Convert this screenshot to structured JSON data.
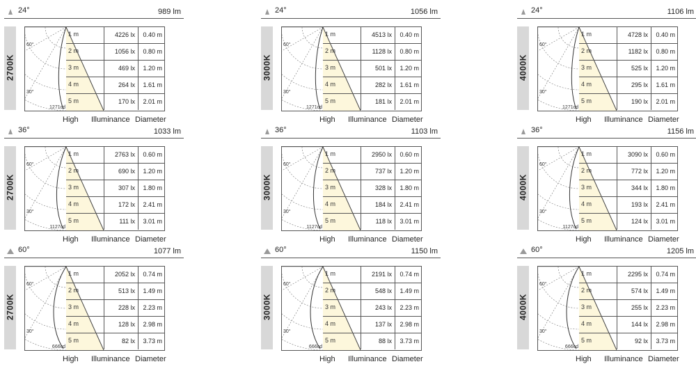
{
  "footer_labels": {
    "high": "High",
    "illuminance": "Illuminance",
    "diameter": "Diameter"
  },
  "polar": {
    "angle60": "60°",
    "angle30": "30°"
  },
  "distances": [
    "1 m",
    "2 m",
    "3 m",
    "4 m",
    "5 m"
  ],
  "panels": [
    {
      "angle": "24°",
      "lumens": "989 lm",
      "cct": "2700K",
      "peak": "1271cd",
      "lux": [
        "4226 lx",
        "1056 lx",
        "469 lx",
        "264 lx",
        "170 lx"
      ],
      "diam": [
        "0.40 m",
        "0.80 m",
        "1.20 m",
        "1.61 m",
        "2.01 m"
      ]
    },
    {
      "angle": "24°",
      "lumens": "1056 lm",
      "cct": "3000K",
      "peak": "1271cd",
      "lux": [
        "4513 lx",
        "1128 lx",
        "501 lx",
        "282 lx",
        "181 lx"
      ],
      "diam": [
        "0.40 m",
        "0.80 m",
        "1.20 m",
        "1.61 m",
        "2.01 m"
      ]
    },
    {
      "angle": "24°",
      "lumens": "1106 lm",
      "cct": "4000K",
      "peak": "1271cd",
      "lux": [
        "4728 lx",
        "1182 lx",
        "525 lx",
        "295 lx",
        "190 lx"
      ],
      "diam": [
        "0.40 m",
        "0.80 m",
        "1.20 m",
        "1.61 m",
        "2.01 m"
      ]
    },
    {
      "angle": "36°",
      "lumens": "1033 lm",
      "cct": "2700K",
      "peak": "1127cd",
      "lux": [
        "2763 lx",
        "690 lx",
        "307 lx",
        "172 lx",
        "111 lx"
      ],
      "diam": [
        "0.60 m",
        "1.20 m",
        "1.80 m",
        "2.41 m",
        "3.01 m"
      ]
    },
    {
      "angle": "36°",
      "lumens": "1103 lm",
      "cct": "3000K",
      "peak": "1127cd",
      "lux": [
        "2950 lx",
        "737 lx",
        "328 lx",
        "184 lx",
        "118 lx"
      ],
      "diam": [
        "0.60 m",
        "1.20 m",
        "1.80 m",
        "2.41 m",
        "3.01 m"
      ]
    },
    {
      "angle": "36°",
      "lumens": "1156 lm",
      "cct": "4000K",
      "peak": "1127cd",
      "lux": [
        "3090 lx",
        "772 lx",
        "344 lx",
        "193 lx",
        "124 lx"
      ],
      "diam": [
        "0.60 m",
        "1.20 m",
        "1.80 m",
        "2.41 m",
        "3.01 m"
      ]
    },
    {
      "angle": "60°",
      "lumens": "1077 lm",
      "cct": "2700K",
      "peak": "666cd",
      "lux": [
        "2052 lx",
        "513 lx",
        "228 lx",
        "128 lx",
        "82 lx"
      ],
      "diam": [
        "0.74 m",
        "1.49 m",
        "2.23 m",
        "2.98 m",
        "3.73 m"
      ]
    },
    {
      "angle": "60°",
      "lumens": "1150 lm",
      "cct": "3000K",
      "peak": "666cd",
      "lux": [
        "2191 lx",
        "548 lx",
        "243 lx",
        "137 lx",
        "88 lx"
      ],
      "diam": [
        "0.74 m",
        "1.49 m",
        "2.23 m",
        "2.98 m",
        "3.73 m"
      ]
    },
    {
      "angle": "60°",
      "lumens": "1205 lm",
      "cct": "4000K",
      "peak": "666cd",
      "lux": [
        "2295 lx",
        "574 lx",
        "255 lx",
        "144 lx",
        "92 lx"
      ],
      "diam": [
        "0.74 m",
        "1.49 m",
        "2.23 m",
        "2.98 m",
        "3.73 m"
      ]
    }
  ],
  "colors": {
    "cone_fill": "#fdf7dc",
    "tag_bg": "#d8d8d8",
    "line": "#555555"
  }
}
